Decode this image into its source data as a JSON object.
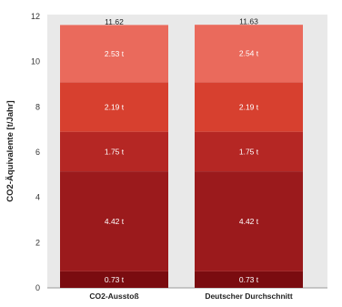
{
  "chart_data": {
    "type": "bar",
    "stacked": true,
    "categories": [
      "CO2-Ausstoß",
      "Deutscher Durchschnitt"
    ],
    "ylabel": "CO2-Äquivalente [t/Jahr]",
    "xlabel": "",
    "ylim": [
      0,
      12
    ],
    "yticks": [
      "0",
      "2",
      "4",
      "6",
      "8",
      "10",
      "12"
    ],
    "grid": false,
    "totals": [
      11.62,
      11.63
    ],
    "total_labels": [
      "11.62",
      "11.63"
    ],
    "series": [
      {
        "values": [
          0.73,
          0.73
        ],
        "labels": [
          "0.73 t",
          "0.73 t"
        ],
        "color": "#7a0c10"
      },
      {
        "values": [
          4.42,
          4.42
        ],
        "labels": [
          "4.42 t",
          "4.42 t"
        ],
        "color": "#9b1a1c"
      },
      {
        "values": [
          1.75,
          1.75
        ],
        "labels": [
          "1.75 t",
          "1.75 t"
        ],
        "color": "#b52724"
      },
      {
        "values": [
          2.19,
          2.19
        ],
        "labels": [
          "2.19 t",
          "2.19 t"
        ],
        "color": "#d7402f"
      },
      {
        "values": [
          2.53,
          2.54
        ],
        "labels": [
          "2.53 t",
          "2.54 t"
        ],
        "color": "#ea6a5c"
      }
    ]
  }
}
